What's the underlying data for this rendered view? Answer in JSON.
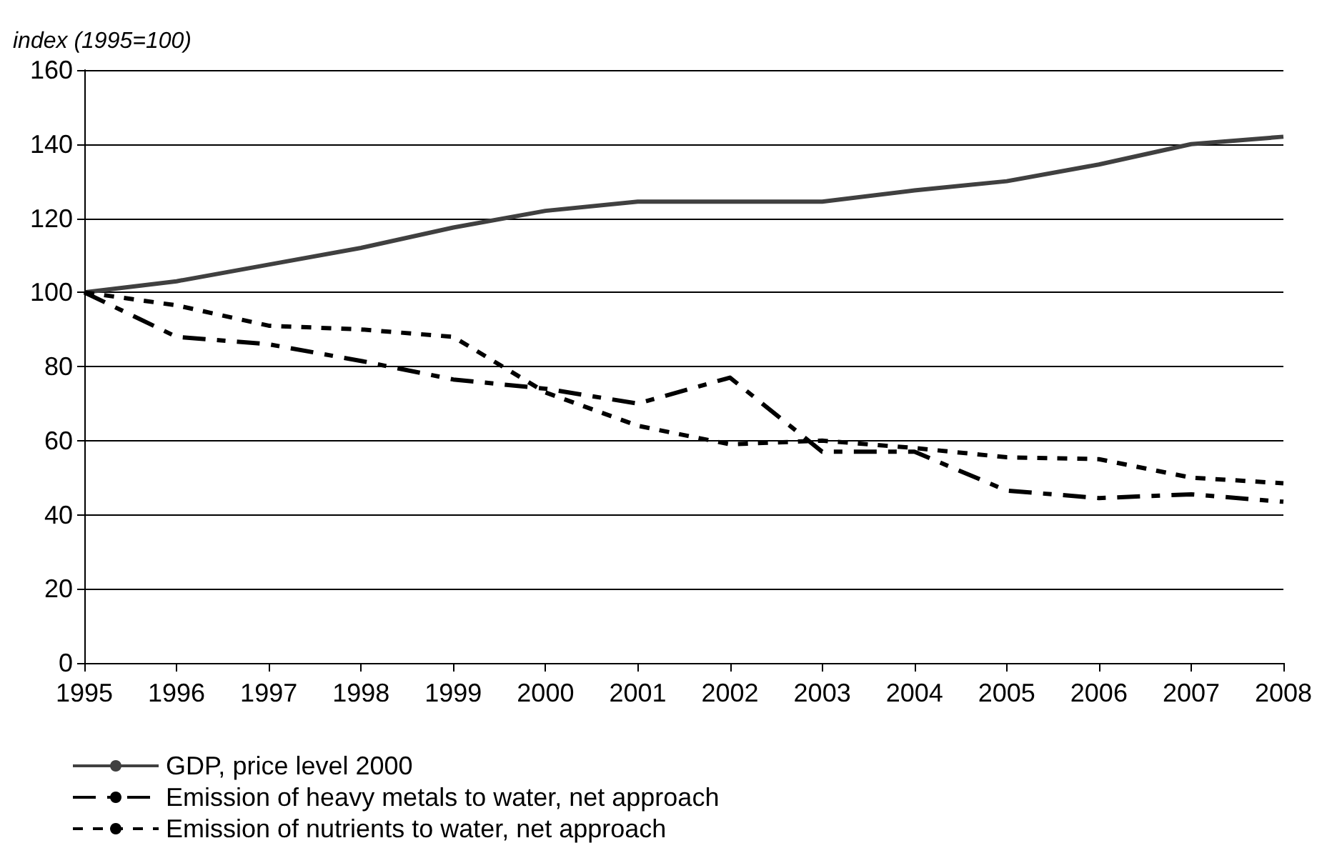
{
  "chart_data": {
    "type": "line",
    "ylabel": "index (1995=100)",
    "categories": [
      "1995",
      "1996",
      "1997",
      "1998",
      "1999",
      "2000",
      "2001",
      "2002",
      "2003",
      "2004",
      "2005",
      "2006",
      "2007",
      "2008"
    ],
    "series": [
      {
        "name": "GDP, price level 2000",
        "color": "#404040",
        "line_style": "solid",
        "values": [
          100,
          103,
          107.5,
          112,
          117.5,
          122,
          124.5,
          124.5,
          124.5,
          127.5,
          130,
          134.5,
          140,
          142
        ]
      },
      {
        "name": "Emission of heavy metals to water, net approach",
        "color": "#000000",
        "line_style": "dashed",
        "values": [
          100,
          88,
          86,
          81.5,
          76.5,
          74,
          70,
          77,
          57,
          57,
          46.5,
          44.5,
          45.5,
          43.5
        ]
      },
      {
        "name": "Emission of nutrients to water, net approach",
        "color": "#000000",
        "line_style": "dotted",
        "values": [
          100,
          96.5,
          91,
          90,
          88,
          73,
          64,
          59,
          60,
          58,
          55.5,
          55,
          50,
          48.5
        ]
      }
    ],
    "ylim": [
      0,
      160
    ],
    "yticks": [
      0,
      20,
      40,
      60,
      80,
      100,
      120,
      140,
      160
    ],
    "grid": "y",
    "legend": "bottom left",
    "marker": "none"
  }
}
